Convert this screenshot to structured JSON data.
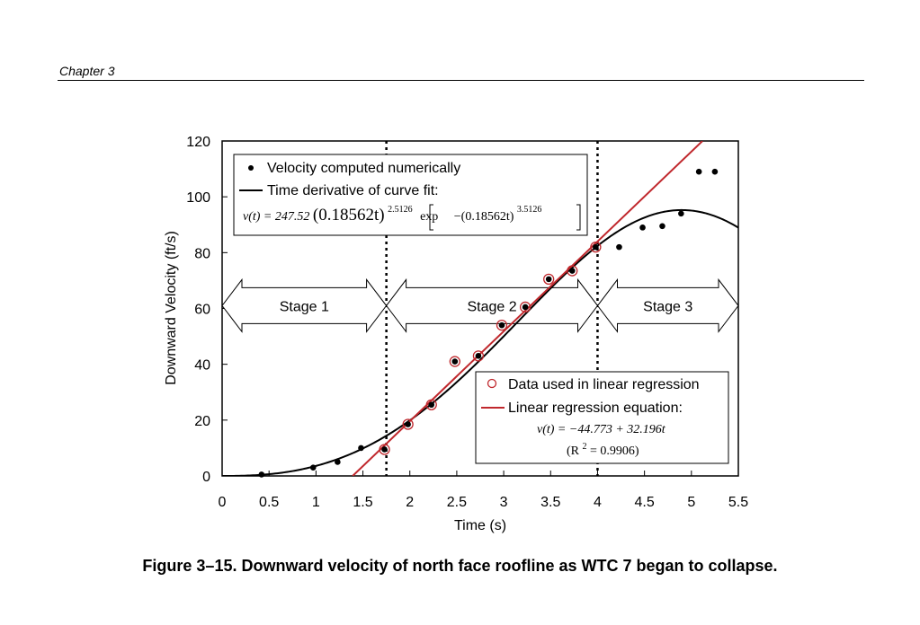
{
  "header": {
    "chapter": "Chapter 3"
  },
  "caption": "Figure 3–15.  Downward velocity of north face roofline as WTC 7 began to collapse.",
  "chart_data": {
    "type": "scatter",
    "xlabel": "Time (s)",
    "ylabel": "Downward Velocity (ft/s)",
    "xlim": [
      0,
      5.5
    ],
    "ylim": [
      0,
      120
    ],
    "x_ticks": [
      "0",
      "0.5",
      "1",
      "1.5",
      "2",
      "2.5",
      "3",
      "3.5",
      "4",
      "4.5",
      "5",
      "5.5"
    ],
    "y_ticks": [
      "0",
      "20",
      "40",
      "60",
      "80",
      "100",
      "120"
    ],
    "grid": false,
    "stage_boundaries": [
      1.75,
      4.0
    ],
    "stages": [
      {
        "label": "Stage 1",
        "x_start": 0,
        "x_end": 1.75,
        "y": 61
      },
      {
        "label": "Stage 2",
        "x_start": 1.75,
        "x_end": 4.0,
        "y": 61
      },
      {
        "label": "Stage 3",
        "x_start": 4.0,
        "x_end": 5.5,
        "y": 61
      }
    ],
    "series": [
      {
        "name": "Velocity computed numerically",
        "marker": "dot",
        "color": "#000000",
        "points": [
          [
            0.42,
            0.5
          ],
          [
            0.97,
            3
          ],
          [
            1.23,
            5
          ],
          [
            1.48,
            10
          ],
          [
            1.73,
            9.5
          ],
          [
            1.98,
            18.5
          ],
          [
            2.23,
            25.5
          ],
          [
            2.48,
            41
          ],
          [
            2.73,
            43
          ],
          [
            2.98,
            54
          ],
          [
            3.23,
            60.5
          ],
          [
            3.48,
            70.5
          ],
          [
            3.73,
            73.5
          ],
          [
            3.98,
            82
          ],
          [
            4.23,
            82
          ],
          [
            4.48,
            89
          ],
          [
            4.69,
            89.5
          ],
          [
            4.89,
            94
          ],
          [
            5.08,
            109
          ],
          [
            5.25,
            109
          ]
        ]
      },
      {
        "name": "Data used in linear regression",
        "marker": "open-circle",
        "color": "#c0282d",
        "points": [
          [
            1.73,
            9.5
          ],
          [
            1.98,
            18.5
          ],
          [
            2.23,
            25.5
          ],
          [
            2.48,
            41
          ],
          [
            2.73,
            43
          ],
          [
            2.98,
            54
          ],
          [
            3.23,
            60.5
          ],
          [
            3.48,
            70.5
          ],
          [
            3.73,
            73.5
          ],
          [
            3.98,
            82
          ]
        ]
      },
      {
        "name": "Time derivative of curve fit:",
        "type": "line",
        "color": "#000000",
        "formula": {
          "a": 247.52,
          "b": 0.18562,
          "p": 2.5126,
          "q": 3.5126
        }
      },
      {
        "name": "Linear regression equation:",
        "type": "line",
        "color": "#c0282d",
        "intercept": -44.773,
        "slope": 32.196
      }
    ],
    "legend_top": {
      "position": "top-left",
      "items": [
        "Velocity computed numerically",
        "Time derivative of curve fit:"
      ],
      "equation": {
        "lhs": "v(t) = 247.52",
        "base": "(0.18562t)",
        "exp1": "2.5126",
        "mid": "exp",
        "inner": "−(0.18562t)",
        "exp2": "3.5126"
      }
    },
    "legend_bottom": {
      "position": "bottom-right",
      "items": [
        "Data used in linear regression",
        "Linear regression equation:"
      ],
      "equation": "v(t) = −44.773 + 32.196t",
      "r2_open": "(R",
      "r2_sup": "2",
      "r2_close": " = 0.9906)"
    }
  }
}
